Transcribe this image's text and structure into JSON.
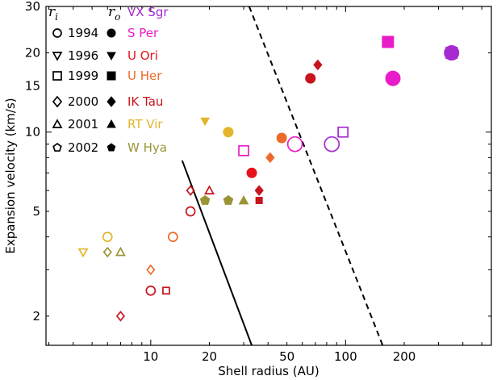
{
  "chart_data": {
    "type": "scatter",
    "xlabel": "Shell radius (AU)",
    "ylabel": "Expansion velocity (km/s)",
    "xscale": "log",
    "yscale": "log",
    "xlim": [
      2.9,
      560
    ],
    "ylim": [
      1.55,
      30
    ],
    "x_ticks": [
      {
        "value": 10,
        "label": "10"
      },
      {
        "value": 20,
        "label": "20"
      },
      {
        "value": 50,
        "label": "50"
      },
      {
        "value": 100,
        "label": "100"
      },
      {
        "value": 200,
        "label": "200"
      }
    ],
    "y_ticks": [
      {
        "value": 2,
        "label": "2"
      },
      {
        "value": 5,
        "label": "5"
      },
      {
        "value": 10,
        "label": "10"
      },
      {
        "value": 15,
        "label": "15"
      },
      {
        "value": 20,
        "label": "20"
      },
      {
        "value": 30,
        "label": "30"
      }
    ],
    "legend": {
      "col_inner_label": "r",
      "col_inner_sub": "i",
      "col_outer_label": "r",
      "col_outer_sub": "o",
      "years": [
        {
          "year": "1994",
          "marker": "circle"
        },
        {
          "year": "1996",
          "marker": "triangle-down"
        },
        {
          "year": "1999",
          "marker": "square"
        },
        {
          "year": "2000",
          "marker": "diamond"
        },
        {
          "year": "2001",
          "marker": "triangle-up"
        },
        {
          "year": "2002",
          "marker": "pentagon"
        }
      ],
      "stars": [
        {
          "name": "VX Sgr",
          "color": "#a52ad0"
        },
        {
          "name": "S Per",
          "color": "#e81cc8"
        },
        {
          "name": "U Ori",
          "color": "#e8121a"
        },
        {
          "name": "U Her",
          "color": "#ec6a2a"
        },
        {
          "name": "IK Tau",
          "color": "#c8141c"
        },
        {
          "name": "RT Vir",
          "color": "#e2b52a"
        },
        {
          "name": "W Hya",
          "color": "#9a9436"
        }
      ]
    },
    "lines": [
      {
        "style": "solid",
        "points": [
          [
            14.5,
            7.8
          ],
          [
            33,
            1.55
          ]
        ]
      },
      {
        "style": "dashed",
        "points": [
          [
            32,
            30
          ],
          [
            155,
            1.55
          ]
        ]
      }
    ],
    "series": [
      {
        "name": "VX Sgr",
        "color": "#a52ad0",
        "points": [
          {
            "x": 85,
            "y": 9,
            "marker": "circle",
            "fill": false,
            "size": 9
          },
          {
            "x": 97,
            "y": 10,
            "marker": "square",
            "fill": false,
            "size": 6
          },
          {
            "x": 350,
            "y": 20,
            "marker": "circle",
            "fill": true,
            "size": 9
          },
          {
            "x": 350,
            "y": 20,
            "marker": "square",
            "fill": true,
            "size": 7
          }
        ]
      },
      {
        "name": "S Per",
        "color": "#e81cc8",
        "points": [
          {
            "x": 55,
            "y": 9,
            "marker": "circle",
            "fill": false,
            "size": 9
          },
          {
            "x": 30,
            "y": 8.5,
            "marker": "square",
            "fill": false,
            "size": 6
          },
          {
            "x": 175,
            "y": 16,
            "marker": "circle",
            "fill": true,
            "size": 9
          },
          {
            "x": 165,
            "y": 22,
            "marker": "square",
            "fill": true,
            "size": 7
          }
        ]
      },
      {
        "name": "U Ori",
        "color": "#e8121a",
        "points": [
          {
            "x": 33,
            "y": 7,
            "marker": "circle",
            "fill": true,
            "size": 6
          }
        ]
      },
      {
        "name": "U Her",
        "color": "#ec6a2a",
        "points": [
          {
            "x": 13,
            "y": 4,
            "marker": "circle",
            "fill": false,
            "size": 5.5
          },
          {
            "x": 10,
            "y": 3,
            "marker": "diamond",
            "fill": false,
            "size": 4.5
          },
          {
            "x": 47,
            "y": 9.5,
            "marker": "circle",
            "fill": true,
            "size": 6
          },
          {
            "x": 41,
            "y": 8,
            "marker": "diamond",
            "fill": true,
            "size": 5
          }
        ]
      },
      {
        "name": "IK Tau",
        "color": "#c8141c",
        "points": [
          {
            "x": 16,
            "y": 5,
            "marker": "circle",
            "fill": false,
            "size": 5.5
          },
          {
            "x": 10,
            "y": 2.5,
            "marker": "circle",
            "fill": false,
            "size": 5.5
          },
          {
            "x": 12,
            "y": 2.5,
            "marker": "square",
            "fill": false,
            "size": 4
          },
          {
            "x": 7,
            "y": 2,
            "marker": "diamond",
            "fill": false,
            "size": 4.5
          },
          {
            "x": 16,
            "y": 6,
            "marker": "diamond",
            "fill": false,
            "size": 4.5
          },
          {
            "x": 20,
            "y": 6,
            "marker": "triangle-up",
            "fill": false,
            "size": 5
          },
          {
            "x": 66,
            "y": 16,
            "marker": "circle",
            "fill": true,
            "size": 6
          },
          {
            "x": 72,
            "y": 18,
            "marker": "diamond",
            "fill": true,
            "size": 5
          },
          {
            "x": 36,
            "y": 6,
            "marker": "diamond",
            "fill": true,
            "size": 5
          },
          {
            "x": 36,
            "y": 5.5,
            "marker": "square",
            "fill": true,
            "size": 4
          }
        ]
      },
      {
        "name": "RT Vir",
        "color": "#e2b52a",
        "points": [
          {
            "x": 6,
            "y": 4,
            "marker": "circle",
            "fill": false,
            "size": 5.5
          },
          {
            "x": 4.5,
            "y": 3.5,
            "marker": "triangle-down",
            "fill": false,
            "size": 5
          },
          {
            "x": 25,
            "y": 10,
            "marker": "circle",
            "fill": true,
            "size": 6
          },
          {
            "x": 19,
            "y": 11,
            "marker": "triangle-down",
            "fill": true,
            "size": 5
          }
        ]
      },
      {
        "name": "W Hya",
        "color": "#9a9436",
        "points": [
          {
            "x": 6,
            "y": 3.5,
            "marker": "diamond",
            "fill": false,
            "size": 4.5
          },
          {
            "x": 7,
            "y": 3.5,
            "marker": "triangle-up",
            "fill": false,
            "size": 5
          },
          {
            "x": 19,
            "y": 5.5,
            "marker": "pentagon",
            "fill": true,
            "size": 6
          },
          {
            "x": 25,
            "y": 5.5,
            "marker": "pentagon",
            "fill": true,
            "size": 6
          },
          {
            "x": 30,
            "y": 5.5,
            "marker": "triangle-up",
            "fill": true,
            "size": 5.5
          }
        ]
      }
    ]
  }
}
